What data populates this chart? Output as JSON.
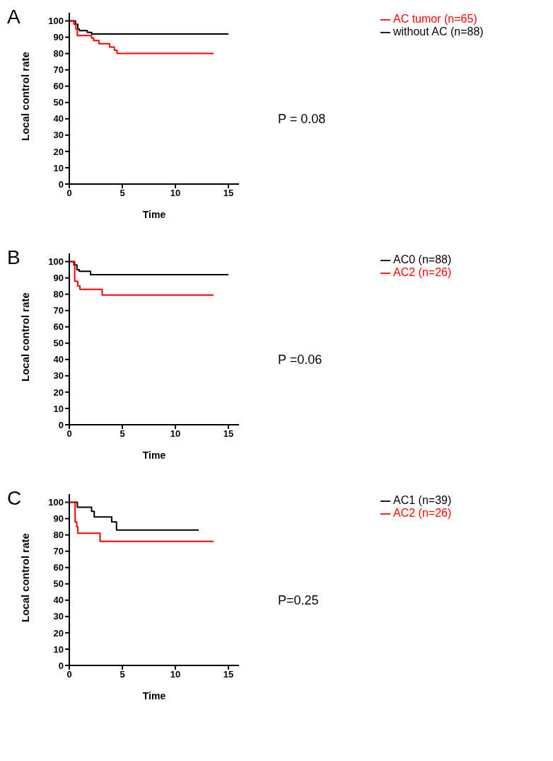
{
  "chart_data": [
    {
      "type": "step",
      "title": "A",
      "xlabel": "Time",
      "ylabel": "Local control rate",
      "xlim": [
        0,
        16
      ],
      "ylim": [
        0,
        105
      ],
      "xticks": [
        0,
        5,
        10,
        15
      ],
      "yticks": [
        0,
        10,
        20,
        30,
        40,
        50,
        60,
        70,
        80,
        90,
        100
      ],
      "grid": false,
      "legend": "top right",
      "marker": "none",
      "line_style": "solid",
      "annotations": [
        "P = 0.08"
      ],
      "series": [
        {
          "name": "without AC (n=88)",
          "color": "#000000",
          "x": [
            0,
            0.58,
            0.8,
            0.95,
            1.7,
            2.1,
            15.0
          ],
          "values": [
            100,
            98,
            95,
            94,
            93,
            92,
            92
          ]
        },
        {
          "name": "AC tumor (n=65)",
          "color": "#ff0000",
          "x": [
            0,
            0.43,
            0.62,
            0.76,
            2.1,
            2.3,
            2.8,
            3.8,
            4.25,
            4.5,
            13.6
          ],
          "values": [
            100,
            98,
            95,
            91,
            89.5,
            88,
            86,
            84,
            82,
            80,
            80
          ]
        }
      ]
    },
    {
      "type": "step",
      "title": "B",
      "xlabel": "Time",
      "ylabel": "Local control rate",
      "xlim": [
        0,
        16
      ],
      "ylim": [
        0,
        105
      ],
      "xticks": [
        0,
        5,
        10,
        15
      ],
      "yticks": [
        0,
        10,
        20,
        30,
        40,
        50,
        60,
        70,
        80,
        90,
        100
      ],
      "grid": false,
      "legend": "top right",
      "marker": "none",
      "line_style": "solid",
      "annotations": [
        "P =0.06"
      ],
      "series": [
        {
          "name": "AC0 (n=88)",
          "color": "#000000",
          "x": [
            0,
            0.43,
            0.72,
            0.94,
            2.0,
            15.0
          ],
          "values": [
            100,
            98,
            95,
            94,
            92,
            92
          ]
        },
        {
          "name": "AC2 (n=26)",
          "color": "#ff0000",
          "x": [
            0,
            0.51,
            0.8,
            1.0,
            3.1,
            13.6
          ],
          "values": [
            100,
            88,
            85,
            83,
            79.5,
            79.5
          ]
        }
      ]
    },
    {
      "type": "step",
      "title": "C",
      "xlabel": "Time",
      "ylabel": "Local control rate",
      "xlim": [
        0,
        16
      ],
      "ylim": [
        0,
        105
      ],
      "xticks": [
        0,
        5,
        10,
        15
      ],
      "yticks": [
        0,
        10,
        20,
        30,
        40,
        50,
        60,
        70,
        80,
        90,
        100
      ],
      "grid": false,
      "legend": "top right",
      "marker": "none",
      "line_style": "solid",
      "annotations": [
        "P=0.25"
      ],
      "series": [
        {
          "name": "AC1 (n=39)",
          "color": "#000000",
          "x": [
            0,
            0.76,
            2.1,
            2.35,
            4.0,
            4.45,
            12.2
          ],
          "values": [
            100,
            97,
            94.5,
            91,
            88,
            83,
            83
          ]
        },
        {
          "name": "AC2 (n=26)",
          "color": "#ff0000",
          "x": [
            0,
            0.55,
            0.7,
            0.8,
            2.9,
            13.6
          ],
          "values": [
            100,
            88,
            85,
            81,
            76,
            76
          ]
        }
      ]
    }
  ]
}
